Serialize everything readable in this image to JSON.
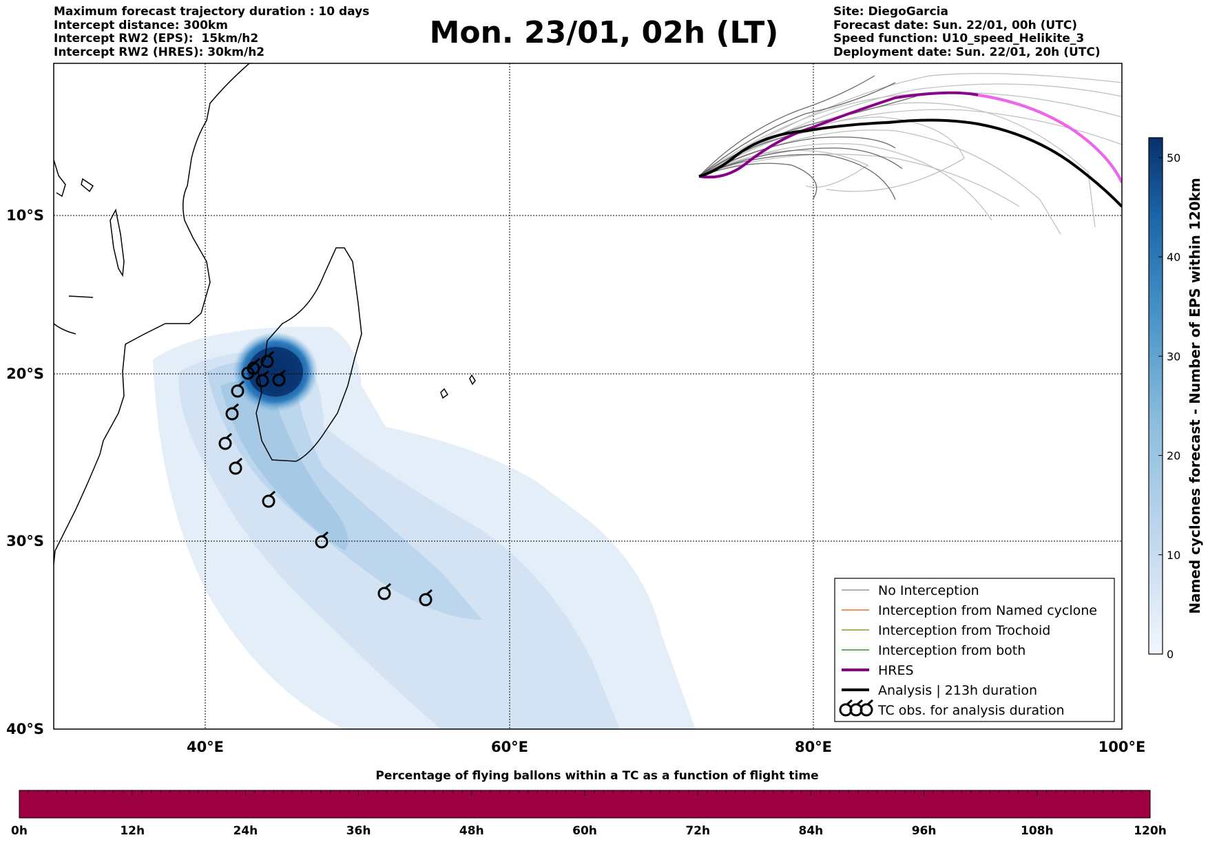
{
  "header_left": {
    "line1": "Maximum forecast trajectory duration : 10 days",
    "line2": "Intercept distance: 300km",
    "line3": "Intercept RW2 (EPS):  15km/h2",
    "line4": "Intercept RW2 (HRES): 30km/h2"
  },
  "title": "Mon. 23/01, 02h (LT)",
  "header_right": {
    "site": "Site: DiegoGarcia",
    "forecast_date": "Forecast date: Sun. 22/01, 00h (UTC)",
    "speed_function": "Speed function: U10_speed_Helikite_3",
    "deployment_date": "Deployment date: Sun. 22/01, 20h (UTC)"
  },
  "map": {
    "lon_labels": [
      "40°E",
      "60°E",
      "80°E",
      "100°E"
    ],
    "lat_labels": [
      "10°S",
      "20°S",
      "30°S",
      "40°S"
    ],
    "colors": {
      "ocean": "#ffffff",
      "coast": "#000000",
      "grid": "#000000"
    }
  },
  "colorbar": {
    "label": "Named cyclones forecast - Number of EPS within 120km",
    "ticks": [
      "0",
      "10",
      "20",
      "30",
      "40",
      "50"
    ],
    "min": 0,
    "max": 52,
    "colors": [
      "#e8f1fa",
      "#c6dbef",
      "#9ecae1",
      "#6baed6",
      "#3182bd",
      "#08306b"
    ]
  },
  "legend": {
    "items": [
      {
        "label": "No Interception",
        "color": "#808080",
        "icon": "thin-line"
      },
      {
        "label": "Interception from Named cyclone",
        "color": "#ff4500",
        "icon": "thin-line"
      },
      {
        "label": "Interception from Trochoid",
        "color": "#808000",
        "icon": "thin-line"
      },
      {
        "label": "Interception from both",
        "color": "#008000",
        "icon": "thin-line"
      },
      {
        "label": "HRES",
        "color": "#8b008b",
        "icon": "thick-line"
      },
      {
        "label": "Analysis | 213h duration",
        "color": "#000000",
        "icon": "thick-line"
      },
      {
        "label": "TC obs. for analysis duration",
        "color": "#000000",
        "icon": "cyclone-symbols"
      }
    ]
  },
  "timeline": {
    "title": "Percentage of flying ballons within a TC as a function of flight time",
    "ticks": [
      "0h",
      "12h",
      "24h",
      "36h",
      "48h",
      "60h",
      "72h",
      "84h",
      "96h",
      "108h",
      "120h"
    ],
    "fill_color": "#9e0142"
  }
}
